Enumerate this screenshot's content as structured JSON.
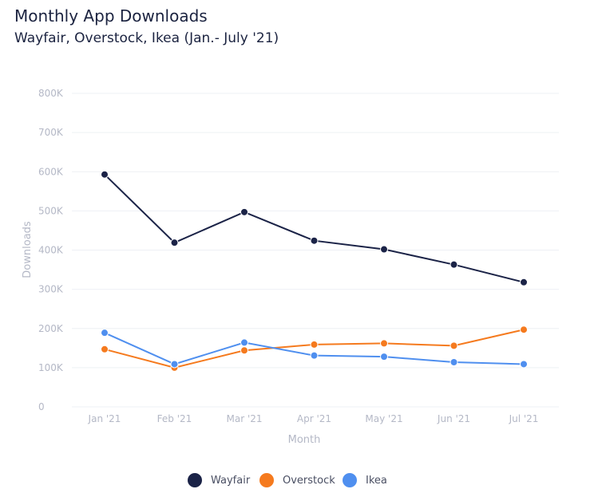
{
  "chart_data": {
    "type": "line",
    "title": "Monthly App Downloads",
    "subtitle": "Wayfair, Overstock, Ikea (Jan.- July '21)",
    "xlabel": "Month",
    "ylabel": "Downloads",
    "categories": [
      "Jan '21",
      "Feb '21",
      "Mar '21",
      "Apr '21",
      "May '21",
      "Jun '21",
      "Jul '21"
    ],
    "y_ticks": [
      0,
      100000,
      200000,
      300000,
      400000,
      500000,
      600000,
      700000,
      800000
    ],
    "y_tick_labels": [
      "0",
      "100K",
      "200K",
      "300K",
      "400K",
      "500K",
      "600K",
      "700K",
      "800K"
    ],
    "ylim": [
      0,
      800000
    ],
    "grid": true,
    "legend_position": "bottom",
    "series": [
      {
        "name": "Wayfair",
        "color": "#1b2347",
        "values": [
          593000,
          419000,
          497000,
          424000,
          402000,
          363000,
          318000
        ]
      },
      {
        "name": "Overstock",
        "color": "#f57a1e",
        "values": [
          147000,
          100000,
          144000,
          159000,
          162000,
          156000,
          197000
        ]
      },
      {
        "name": "Ikea",
        "color": "#4f8fef",
        "values": [
          189000,
          109000,
          164000,
          131000,
          128000,
          114000,
          109000
        ]
      }
    ]
  }
}
